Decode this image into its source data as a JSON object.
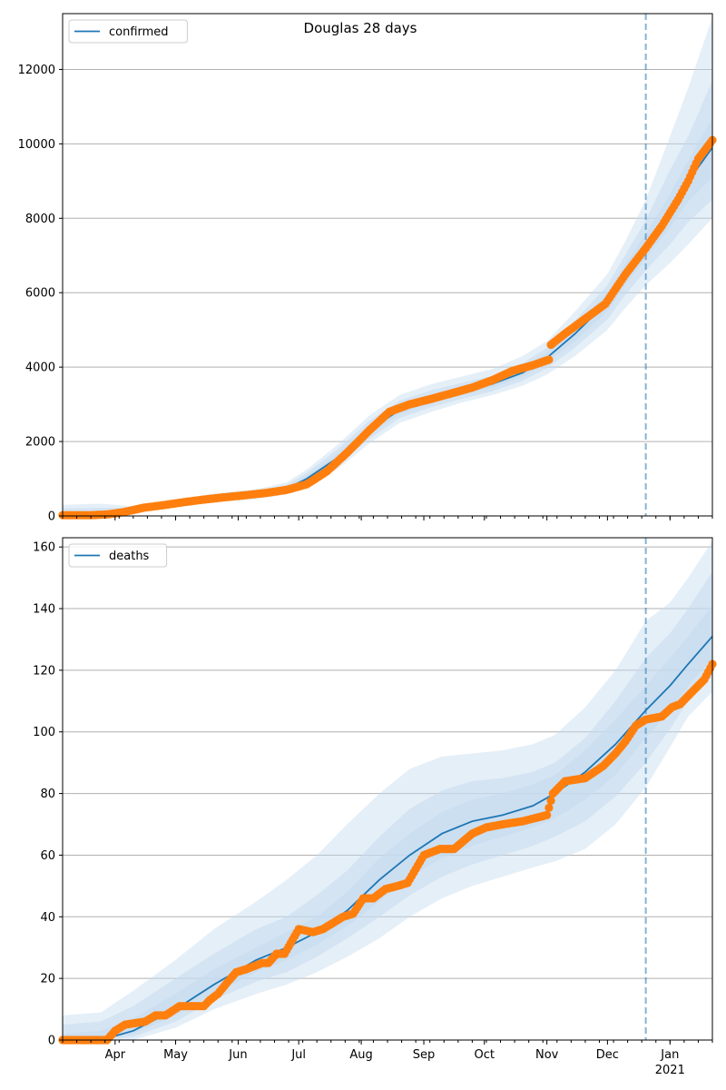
{
  "figure": {
    "title": "Douglas 28 days"
  },
  "colors": {
    "model": "#1f77b4",
    "observed": "#ff7f0e",
    "band": "#c6dbef",
    "vline": "#1f77b4",
    "grid": "#b0b0b0"
  },
  "chart_data": [
    {
      "type": "line",
      "title": "Douglas 28 days",
      "legend": [
        "confirmed"
      ],
      "legend_position": "top-left",
      "grid": "horizontal",
      "xlim": [
        "2020-03-06",
        "2021-01-22"
      ],
      "ylim": [
        0,
        13500
      ],
      "yticks": [
        0,
        2000,
        4000,
        6000,
        8000,
        10000,
        12000
      ],
      "xtick_labels": [
        "Apr",
        "May",
        "Jun",
        "Jul",
        "Aug",
        "Sep",
        "Oct",
        "Nov",
        "Dec",
        "Jan",
        "2021"
      ],
      "forecast_start": "2020-12-20",
      "model": {
        "name": "confirmed",
        "x": [
          "2020-03-06",
          "2020-03-25",
          "2020-04-10",
          "2020-05-01",
          "2020-05-20",
          "2020-06-10",
          "2020-06-25",
          "2020-07-05",
          "2020-07-20",
          "2020-08-05",
          "2020-08-20",
          "2020-09-05",
          "2020-09-20",
          "2020-10-05",
          "2020-10-20",
          "2020-11-01",
          "2020-11-15",
          "2020-12-01",
          "2020-12-10",
          "2020-12-20",
          "2021-01-01",
          "2021-01-10",
          "2021-01-22"
        ],
        "median": [
          0,
          30,
          150,
          330,
          480,
          580,
          730,
          1000,
          1550,
          2300,
          2850,
          3150,
          3350,
          3550,
          3850,
          4250,
          4900,
          5750,
          6500,
          7250,
          8200,
          9000,
          9900
        ],
        "band_outer": [
          [
            0,
            300
          ],
          [
            0,
            330
          ],
          [
            60,
            260
          ],
          [
            240,
            430
          ],
          [
            370,
            600
          ],
          [
            450,
            720
          ],
          [
            580,
            900
          ],
          [
            800,
            1250
          ],
          [
            1250,
            1900
          ],
          [
            1950,
            2700
          ],
          [
            2500,
            3250
          ],
          [
            2800,
            3550
          ],
          [
            3050,
            3750
          ],
          [
            3250,
            3950
          ],
          [
            3500,
            4300
          ],
          [
            3800,
            4700
          ],
          [
            4300,
            5500
          ],
          [
            5000,
            6500
          ],
          [
            5600,
            7400
          ],
          [
            6200,
            8500
          ],
          [
            6800,
            10200
          ],
          [
            7300,
            11500
          ],
          [
            8000,
            13400
          ]
        ],
        "band_mid": [
          [
            0,
            200
          ],
          [
            0,
            220
          ],
          [
            90,
            220
          ],
          [
            270,
            400
          ],
          [
            410,
            560
          ],
          [
            500,
            670
          ],
          [
            630,
            840
          ],
          [
            870,
            1160
          ],
          [
            1350,
            1780
          ],
          [
            2070,
            2560
          ],
          [
            2630,
            3100
          ],
          [
            2930,
            3380
          ],
          [
            3150,
            3580
          ],
          [
            3350,
            3770
          ],
          [
            3630,
            4100
          ],
          [
            3970,
            4520
          ],
          [
            4530,
            5260
          ],
          [
            5280,
            6200
          ],
          [
            5950,
            7030
          ],
          [
            6600,
            7950
          ],
          [
            7300,
            9300
          ],
          [
            7900,
            10200
          ],
          [
            8500,
            11700
          ]
        ],
        "band_inner": [
          [
            0,
            100
          ],
          [
            10,
            120
          ],
          [
            120,
            190
          ],
          [
            300,
            370
          ],
          [
            440,
            530
          ],
          [
            540,
            630
          ],
          [
            680,
            790
          ],
          [
            930,
            1080
          ],
          [
            1450,
            1660
          ],
          [
            2180,
            2430
          ],
          [
            2740,
            2970
          ],
          [
            3040,
            3260
          ],
          [
            3250,
            3460
          ],
          [
            3450,
            3660
          ],
          [
            3740,
            3970
          ],
          [
            4120,
            4390
          ],
          [
            4700,
            5100
          ],
          [
            5500,
            6000
          ],
          [
            6220,
            6780
          ],
          [
            6920,
            7580
          ],
          [
            7750,
            8650
          ],
          [
            8450,
            9550
          ],
          [
            9100,
            10700
          ]
        ]
      },
      "observed": {
        "x": [
          "2020-03-06",
          "2020-03-20",
          "2020-03-28",
          "2020-04-05",
          "2020-04-15",
          "2020-04-25",
          "2020-05-05",
          "2020-05-15",
          "2020-05-25",
          "2020-06-05",
          "2020-06-15",
          "2020-06-25",
          "2020-07-05",
          "2020-07-15",
          "2020-07-25",
          "2020-08-05",
          "2020-08-15",
          "2020-08-25",
          "2020-09-05",
          "2020-09-15",
          "2020-09-25",
          "2020-10-05",
          "2020-10-15",
          "2020-10-25",
          "2020-11-02",
          "2020-11-03",
          "2020-11-10",
          "2020-11-20",
          "2020-11-30",
          "2020-12-10",
          "2020-12-20",
          "2020-12-28",
          "2021-01-05",
          "2021-01-10",
          "2021-01-15",
          "2021-01-22"
        ],
        "y": [
          20,
          20,
          40,
          100,
          220,
          290,
          370,
          440,
          500,
          560,
          620,
          700,
          850,
          1200,
          1700,
          2300,
          2800,
          3000,
          3150,
          3300,
          3450,
          3650,
          3900,
          4050,
          4200,
          4600,
          4900,
          5300,
          5700,
          6500,
          7200,
          7800,
          8500,
          9000,
          9600,
          10100
        ]
      }
    },
    {
      "type": "line",
      "legend": [
        "deaths"
      ],
      "legend_position": "top-left",
      "grid": "horizontal",
      "xlim": [
        "2020-03-06",
        "2021-01-22"
      ],
      "ylim": [
        0,
        163
      ],
      "yticks": [
        0,
        20,
        40,
        60,
        80,
        100,
        120,
        140,
        160
      ],
      "xtick_labels": [
        "Apr",
        "May",
        "Jun",
        "Jul",
        "Aug",
        "Sep",
        "Oct",
        "Nov",
        "Dec",
        "Jan",
        "2021"
      ],
      "forecast_start": "2020-12-20",
      "model": {
        "name": "deaths",
        "x": [
          "2020-03-06",
          "2020-03-25",
          "2020-04-10",
          "2020-05-01",
          "2020-05-20",
          "2020-06-10",
          "2020-06-25",
          "2020-07-10",
          "2020-07-25",
          "2020-08-10",
          "2020-08-25",
          "2020-09-10",
          "2020-09-25",
          "2020-10-10",
          "2020-10-25",
          "2020-11-05",
          "2020-11-20",
          "2020-12-05",
          "2020-12-20",
          "2021-01-01",
          "2021-01-10",
          "2021-01-22"
        ],
        "median": [
          0,
          0,
          3,
          10,
          18,
          26,
          30,
          35,
          42,
          52,
          60,
          67,
          71,
          73,
          76,
          80,
          87,
          96,
          107,
          115,
          122,
          131
        ],
        "band_outer": [
          [
            0,
            8
          ],
          [
            0,
            9
          ],
          [
            0,
            16
          ],
          [
            4,
            26
          ],
          [
            10,
            36
          ],
          [
            15,
            45
          ],
          [
            18,
            52
          ],
          [
            22,
            60
          ],
          [
            27,
            70
          ],
          [
            33,
            80
          ],
          [
            40,
            88
          ],
          [
            46,
            92
          ],
          [
            50,
            93
          ],
          [
            53,
            94
          ],
          [
            56,
            96
          ],
          [
            58,
            99
          ],
          [
            62,
            108
          ],
          [
            70,
            120
          ],
          [
            82,
            136
          ],
          [
            95,
            142
          ],
          [
            105,
            150
          ],
          [
            113,
            162
          ]
        ],
        "band_mid": [
          [
            0,
            5
          ],
          [
            0,
            6
          ],
          [
            1,
            11
          ],
          [
            6,
            20
          ],
          [
            13,
            28
          ],
          [
            19,
            36
          ],
          [
            22,
            40
          ],
          [
            27,
            47
          ],
          [
            33,
            55
          ],
          [
            40,
            66
          ],
          [
            47,
            75
          ],
          [
            53,
            81
          ],
          [
            57,
            84
          ],
          [
            60,
            85
          ],
          [
            63,
            87
          ],
          [
            66,
            90
          ],
          [
            71,
            98
          ],
          [
            79,
            110
          ],
          [
            90,
            124
          ],
          [
            101,
            132
          ],
          [
            110,
            140
          ],
          [
            118,
            152
          ]
        ],
        "band_inner": [
          [
            0,
            2
          ],
          [
            0,
            3
          ],
          [
            2,
            7
          ],
          [
            8,
            15
          ],
          [
            15,
            23
          ],
          [
            22,
            30
          ],
          [
            26,
            35
          ],
          [
            31,
            40
          ],
          [
            37,
            48
          ],
          [
            45,
            59
          ],
          [
            53,
            67
          ],
          [
            59,
            74
          ],
          [
            63,
            78
          ],
          [
            66,
            80
          ],
          [
            69,
            83
          ],
          [
            72,
            86
          ],
          [
            78,
            94
          ],
          [
            86,
            104
          ],
          [
            98,
            115
          ],
          [
            107,
            124
          ],
          [
            115,
            131
          ],
          [
            124,
            141
          ]
        ]
      },
      "observed": {
        "x": [
          "2020-03-06",
          "2020-03-28",
          "2020-04-01",
          "2020-04-06",
          "2020-04-16",
          "2020-04-21",
          "2020-04-26",
          "2020-05-03",
          "2020-05-15",
          "2020-05-18",
          "2020-05-22",
          "2020-05-27",
          "2020-05-31",
          "2020-06-05",
          "2020-06-13",
          "2020-06-16",
          "2020-06-20",
          "2020-06-24",
          "2020-07-01",
          "2020-07-08",
          "2020-07-13",
          "2020-07-18",
          "2020-07-23",
          "2020-07-28",
          "2020-08-02",
          "2020-08-07",
          "2020-08-13",
          "2020-08-19",
          "2020-08-24",
          "2020-09-01",
          "2020-09-09",
          "2020-09-16",
          "2020-09-25",
          "2020-10-02",
          "2020-10-10",
          "2020-10-20",
          "2020-11-01",
          "2020-11-04",
          "2020-11-10",
          "2020-11-20",
          "2020-11-29",
          "2020-12-05",
          "2020-12-10",
          "2020-12-15",
          "2020-12-20",
          "2020-12-28",
          "2021-01-02",
          "2021-01-06",
          "2021-01-12",
          "2021-01-18",
          "2021-01-22"
        ],
        "y": [
          0,
          0,
          3,
          5,
          6,
          8,
          8,
          11,
          11,
          13,
          15,
          19,
          22,
          23,
          25,
          25,
          28,
          28,
          36,
          35,
          36,
          38,
          40,
          41,
          46,
          46,
          49,
          50,
          51,
          60,
          62,
          62,
          67,
          69,
          70,
          71,
          73,
          80,
          84,
          85,
          89,
          93,
          97,
          102,
          104,
          105,
          108,
          109,
          113,
          117,
          122
        ]
      }
    }
  ]
}
